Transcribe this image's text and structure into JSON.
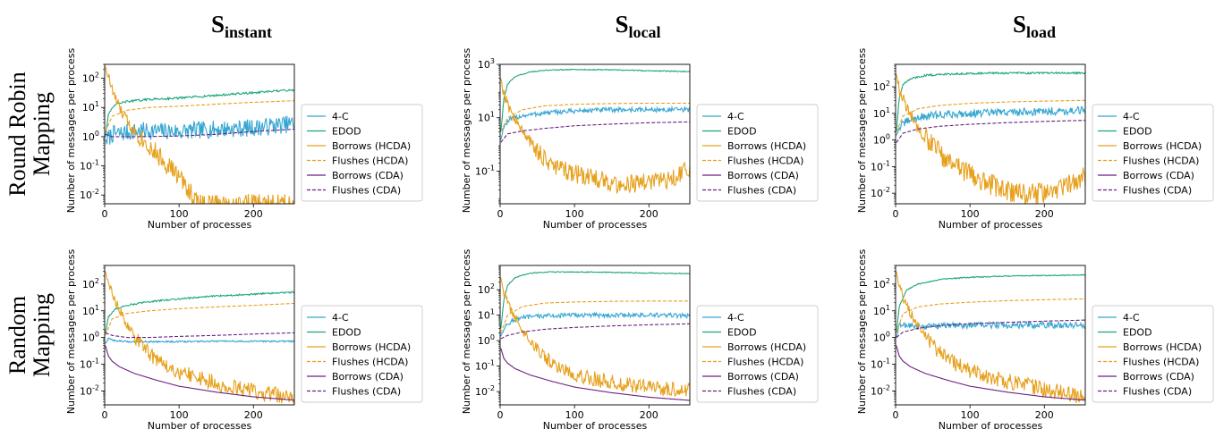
{
  "colors": {
    "4-C": "#35a6d1",
    "EDOD": "#1ba67c",
    "Borrows (HCDA)": "#e6a01c",
    "Flushes (HCDA)": "#e6a01c",
    "Borrows (CDA)": "#6c1f80",
    "Flushes (CDA)": "#6c1f80"
  },
  "column_titles": [
    {
      "main": "S",
      "sub": "instant"
    },
    {
      "main": "S",
      "sub": "local"
    },
    {
      "main": "S",
      "sub": "load"
    }
  ],
  "row_labels": [
    [
      "Round Robin",
      "Mapping"
    ],
    [
      "Random",
      "Mapping"
    ]
  ],
  "chart_data": [
    {
      "type": "line",
      "row": 0,
      "col": 0,
      "xlabel": "Number of processes",
      "ylabel": "Number of messages per process",
      "xlim": [
        0,
        255
      ],
      "ylim": [
        0.005,
        300
      ],
      "yscale": "log",
      "xticks": [
        0,
        100,
        200
      ],
      "yticks_exp": [
        -2,
        -1,
        0,
        1,
        2
      ],
      "legend": [
        "4-C",
        "EDOD",
        "Borrows (HCDA)",
        "Flushes (HCDA)",
        "Borrows (CDA)",
        "Flushes (CDA)"
      ],
      "series": [
        {
          "name": "4-C",
          "style": "solid",
          "x": [
            1,
            10,
            50,
            100,
            150,
            200,
            255
          ],
          "y": [
            0.7,
            1.2,
            1.6,
            1.5,
            1.8,
            2.0,
            2.8
          ],
          "noise": 0.5
        },
        {
          "name": "EDOD",
          "style": "solid",
          "x": [
            1,
            5,
            15,
            30,
            60,
            100,
            150,
            200,
            255
          ],
          "y": [
            1.0,
            6.0,
            13,
            16,
            19,
            21,
            26,
            32,
            40
          ],
          "noise": 0.06
        },
        {
          "name": "Borrows (HCDA)",
          "style": "solid",
          "x": [
            1,
            5,
            10,
            20,
            35,
            50,
            70,
            90,
            110,
            120,
            125
          ],
          "y": [
            250,
            120,
            40,
            9,
            2.2,
            0.9,
            0.25,
            0.08,
            0.02,
            0.008,
            0.005
          ],
          "noise": 0.35
        },
        {
          "name": "Flushes (HCDA)",
          "style": "dashed",
          "x": [
            1,
            10,
            30,
            60,
            100,
            150,
            200,
            255
          ],
          "y": [
            1.5,
            5.0,
            8.0,
            10,
            11,
            13,
            15,
            17
          ],
          "noise": 0
        },
        {
          "name": "Flushes (CDA)",
          "style": "dashed",
          "x": [
            1,
            10,
            50,
            100,
            150,
            200,
            255
          ],
          "y": [
            1.2,
            1.0,
            1.0,
            1.05,
            1.2,
            1.5,
            1.8
          ],
          "noise": 0
        }
      ]
    },
    {
      "type": "line",
      "row": 0,
      "col": 1,
      "xlabel": "Number of processes",
      "ylabel": "Number of messages per process",
      "xlim": [
        0,
        255
      ],
      "ylim": [
        0.006,
        1000
      ],
      "yscale": "log",
      "xticks": [
        0,
        100,
        200
      ],
      "yticks_exp": [
        -1,
        1,
        3
      ],
      "legend": [
        "4-C",
        "EDOD",
        "Borrows (HCDA)",
        "Flushes (HCDA)",
        "Borrows (CDA)",
        "Flushes (CDA)"
      ],
      "series": [
        {
          "name": "4-C",
          "style": "solid",
          "x": [
            1,
            5,
            15,
            30,
            60,
            100,
            150,
            200,
            255
          ],
          "y": [
            1.5,
            5.0,
            9.0,
            12,
            15,
            18,
            20,
            20,
            20
          ],
          "noise": 0.15
        },
        {
          "name": "EDOD",
          "style": "solid",
          "x": [
            1,
            5,
            10,
            20,
            40,
            70,
            100,
            150,
            200,
            255
          ],
          "y": [
            3,
            50,
            180,
            350,
            520,
            620,
            640,
            620,
            580,
            530
          ],
          "noise": 0.03
        },
        {
          "name": "Borrows (HCDA)",
          "style": "solid",
          "x": [
            1,
            5,
            15,
            30,
            50,
            70,
            100,
            130,
            160,
            200,
            230,
            255
          ],
          "y": [
            300,
            80,
            15,
            3.0,
            0.6,
            0.15,
            0.08,
            0.05,
            0.03,
            0.04,
            0.05,
            0.12
          ],
          "noise": 0.35
        },
        {
          "name": "Flushes (HCDA)",
          "style": "dashed",
          "x": [
            1,
            10,
            30,
            60,
            100,
            150,
            200,
            255
          ],
          "y": [
            3,
            10,
            20,
            28,
            32,
            34,
            35,
            35
          ],
          "noise": 0
        },
        {
          "name": "Flushes (CDA)",
          "style": "dashed",
          "x": [
            1,
            10,
            30,
            60,
            100,
            150,
            200,
            255
          ],
          "y": [
            1.2,
            2.5,
            3.2,
            4.0,
            5.0,
            5.8,
            6.5,
            7.0
          ],
          "noise": 0
        }
      ]
    },
    {
      "type": "line",
      "row": 0,
      "col": 2,
      "xlabel": "Number of processes",
      "ylabel": "Number of messages per process",
      "xlim": [
        0,
        255
      ],
      "ylim": [
        0.004,
        700
      ],
      "yscale": "log",
      "xticks": [
        0,
        100,
        200
      ],
      "yticks_exp": [
        -2,
        -1,
        0,
        1,
        2
      ],
      "legend": [
        "4-C",
        "EDOD",
        "Borrows (HCDA)",
        "Flushes (HCDA)",
        "Borrows (CDA)",
        "Flushes (CDA)"
      ],
      "series": [
        {
          "name": "4-C",
          "style": "solid",
          "x": [
            1,
            5,
            15,
            30,
            60,
            100,
            150,
            200,
            255
          ],
          "y": [
            1.5,
            3.0,
            5.0,
            7.0,
            9.0,
            10,
            11,
            12,
            13
          ],
          "noise": 0.25
        },
        {
          "name": "EDOD",
          "style": "solid",
          "x": [
            1,
            5,
            10,
            20,
            40,
            70,
            100,
            150,
            200,
            255
          ],
          "y": [
            2,
            40,
            120,
            200,
            270,
            300,
            320,
            330,
            330,
            330
          ],
          "noise": 0.06
        },
        {
          "name": "Borrows (HCDA)",
          "style": "solid",
          "x": [
            1,
            5,
            15,
            30,
            50,
            70,
            100,
            130,
            160,
            200,
            230,
            255
          ],
          "y": [
            300,
            80,
            15,
            3.0,
            0.6,
            0.15,
            0.05,
            0.02,
            0.01,
            0.01,
            0.02,
            0.04
          ],
          "noise": 0.4
        },
        {
          "name": "Flushes (HCDA)",
          "style": "dashed",
          "x": [
            1,
            10,
            30,
            60,
            100,
            150,
            200,
            255
          ],
          "y": [
            2,
            8,
            15,
            20,
            24,
            27,
            29,
            31
          ],
          "noise": 0
        },
        {
          "name": "Flushes (CDA)",
          "style": "dashed",
          "x": [
            1,
            10,
            30,
            60,
            100,
            150,
            200,
            255
          ],
          "y": [
            0.8,
            1.8,
            2.6,
            3.3,
            3.9,
            4.5,
            5.0,
            5.5
          ],
          "noise": 0
        }
      ]
    },
    {
      "type": "line",
      "row": 1,
      "col": 0,
      "xlabel": "Number of processes",
      "ylabel": "Number of messages per process",
      "xlim": [
        0,
        255
      ],
      "ylim": [
        0.003,
        500
      ],
      "yscale": "log",
      "xticks": [
        0,
        100,
        200
      ],
      "yticks_exp": [
        -2,
        -1,
        0,
        1,
        2
      ],
      "legend": [
        "4-C",
        "EDOD",
        "Borrows (HCDA)",
        "Flushes (HCDA)",
        "Borrows (CDA)",
        "Flushes (CDA)"
      ],
      "series": [
        {
          "name": "4-C",
          "style": "solid",
          "x": [
            1,
            5,
            15,
            30,
            60,
            100,
            150,
            200,
            255
          ],
          "y": [
            0.6,
            0.9,
            0.75,
            0.7,
            0.7,
            0.7,
            0.72,
            0.72,
            0.72
          ],
          "noise": 0.05
        },
        {
          "name": "EDOD",
          "style": "solid",
          "x": [
            1,
            5,
            15,
            30,
            60,
            100,
            150,
            200,
            255
          ],
          "y": [
            1.5,
            6.0,
            12,
            16,
            22,
            28,
            36,
            42,
            50
          ],
          "noise": 0.05
        },
        {
          "name": "Borrows (HCDA)",
          "style": "solid",
          "x": [
            1,
            5,
            15,
            30,
            50,
            70,
            100,
            130,
            160,
            200,
            230,
            255
          ],
          "y": [
            300,
            100,
            20,
            3.0,
            0.5,
            0.15,
            0.05,
            0.03,
            0.015,
            0.01,
            0.007,
            0.005
          ],
          "noise": 0.3
        },
        {
          "name": "Flushes (HCDA)",
          "style": "dashed",
          "x": [
            1,
            10,
            30,
            60,
            100,
            150,
            200,
            255
          ],
          "y": [
            1.2,
            5.0,
            8.0,
            10,
            12,
            14,
            16,
            19
          ],
          "noise": 0
        },
        {
          "name": "Borrows (CDA)",
          "style": "solid",
          "x": [
            1,
            5,
            10,
            20,
            40,
            70,
            100,
            150,
            200,
            255
          ],
          "y": [
            0.5,
            0.2,
            0.13,
            0.08,
            0.045,
            0.025,
            0.015,
            0.009,
            0.006,
            0.0045
          ],
          "noise": 0
        },
        {
          "name": "Flushes (CDA)",
          "style": "dashed",
          "x": [
            1,
            10,
            30,
            60,
            100,
            150,
            200,
            255
          ],
          "y": [
            1.5,
            1.2,
            1.0,
            1.0,
            1.1,
            1.2,
            1.35,
            1.5
          ],
          "noise": 0
        }
      ]
    },
    {
      "type": "line",
      "row": 1,
      "col": 1,
      "xlabel": "Number of processes",
      "ylabel": "Number of messages per process",
      "xlim": [
        0,
        255
      ],
      "ylim": [
        0.003,
        900
      ],
      "yscale": "log",
      "xticks": [
        0,
        100,
        200
      ],
      "yticks_exp": [
        -2,
        -1,
        0,
        1,
        2
      ],
      "legend": [
        "4-C",
        "EDOD",
        "Borrows (HCDA)",
        "Flushes (HCDA)",
        "Borrows (CDA)",
        "Flushes (CDA)"
      ],
      "series": [
        {
          "name": "4-C",
          "style": "solid",
          "x": [
            1,
            5,
            15,
            30,
            60,
            100,
            150,
            200,
            255
          ],
          "y": [
            1.5,
            3.0,
            6.0,
            8.0,
            9.5,
            10,
            10,
            10,
            9.5
          ],
          "noise": 0.15
        },
        {
          "name": "EDOD",
          "style": "solid",
          "x": [
            1,
            5,
            10,
            20,
            40,
            70,
            100,
            150,
            200,
            255
          ],
          "y": [
            3,
            40,
            150,
            300,
            450,
            500,
            500,
            480,
            450,
            430
          ],
          "noise": 0.03
        },
        {
          "name": "Borrows (HCDA)",
          "style": "solid",
          "x": [
            1,
            5,
            15,
            30,
            50,
            70,
            100,
            130,
            160,
            200,
            230,
            255
          ],
          "y": [
            300,
            80,
            15,
            2.5,
            0.5,
            0.12,
            0.05,
            0.03,
            0.02,
            0.015,
            0.012,
            0.012
          ],
          "noise": 0.3
        },
        {
          "name": "Flushes (HCDA)",
          "style": "dashed",
          "x": [
            1,
            10,
            30,
            60,
            100,
            150,
            200,
            255
          ],
          "y": [
            2,
            10,
            22,
            30,
            33,
            35,
            36,
            36
          ],
          "noise": 0
        },
        {
          "name": "Borrows (CDA)",
          "style": "solid",
          "x": [
            1,
            5,
            10,
            20,
            40,
            70,
            100,
            150,
            200,
            255
          ],
          "y": [
            0.5,
            0.2,
            0.13,
            0.08,
            0.045,
            0.025,
            0.015,
            0.009,
            0.006,
            0.0045
          ],
          "noise": 0
        },
        {
          "name": "Flushes (CDA)",
          "style": "dashed",
          "x": [
            1,
            10,
            30,
            60,
            100,
            150,
            200,
            255
          ],
          "y": [
            1.2,
            1.6,
            2.2,
            2.8,
            3.3,
            3.8,
            4.2,
            4.6
          ],
          "noise": 0
        }
      ]
    },
    {
      "type": "line",
      "row": 1,
      "col": 2,
      "xlabel": "Number of processes",
      "ylabel": "Number of messages per process",
      "xlim": [
        0,
        255
      ],
      "ylim": [
        0.003,
        500
      ],
      "yscale": "log",
      "xticks": [
        0,
        100,
        200
      ],
      "yticks_exp": [
        -2,
        -1,
        0,
        1,
        2
      ],
      "legend": [
        "4-C",
        "EDOD",
        "Borrows (HCDA)",
        "Flushes (HCDA)",
        "Borrows (CDA)",
        "Flushes (CDA)"
      ],
      "series": [
        {
          "name": "4-C",
          "style": "solid",
          "x": [
            1,
            5,
            15,
            30,
            60,
            100,
            150,
            200,
            255
          ],
          "y": [
            1.0,
            2.8,
            3.0,
            2.5,
            2.8,
            2.9,
            2.9,
            2.9,
            2.9
          ],
          "noise": 0.2
        },
        {
          "name": "EDOD",
          "style": "solid",
          "x": [
            1,
            5,
            15,
            30,
            60,
            100,
            150,
            200,
            255
          ],
          "y": [
            1.5,
            15,
            60,
            100,
            150,
            180,
            200,
            210,
            220
          ],
          "noise": 0.03
        },
        {
          "name": "Borrows (HCDA)",
          "style": "solid",
          "x": [
            1,
            5,
            15,
            30,
            50,
            70,
            100,
            130,
            160,
            200,
            230,
            255
          ],
          "y": [
            300,
            80,
            15,
            2.5,
            0.5,
            0.15,
            0.06,
            0.03,
            0.02,
            0.012,
            0.008,
            0.006
          ],
          "noise": 0.3
        },
        {
          "name": "Flushes (HCDA)",
          "style": "dashed",
          "x": [
            1,
            10,
            30,
            60,
            100,
            150,
            200,
            255
          ],
          "y": [
            1.5,
            8,
            14,
            18,
            21,
            24,
            26,
            28
          ],
          "noise": 0
        },
        {
          "name": "Borrows (CDA)",
          "style": "solid",
          "x": [
            1,
            5,
            10,
            20,
            40,
            70,
            100,
            150,
            200,
            255
          ],
          "y": [
            0.5,
            0.2,
            0.13,
            0.08,
            0.045,
            0.025,
            0.015,
            0.009,
            0.006,
            0.0045
          ],
          "noise": 0
        },
        {
          "name": "Flushes (CDA)",
          "style": "dashed",
          "x": [
            1,
            10,
            30,
            60,
            100,
            150,
            200,
            255
          ],
          "y": [
            1.0,
            1.6,
            2.2,
            2.8,
            3.3,
            3.7,
            4.1,
            4.5
          ],
          "noise": 0
        }
      ]
    }
  ]
}
